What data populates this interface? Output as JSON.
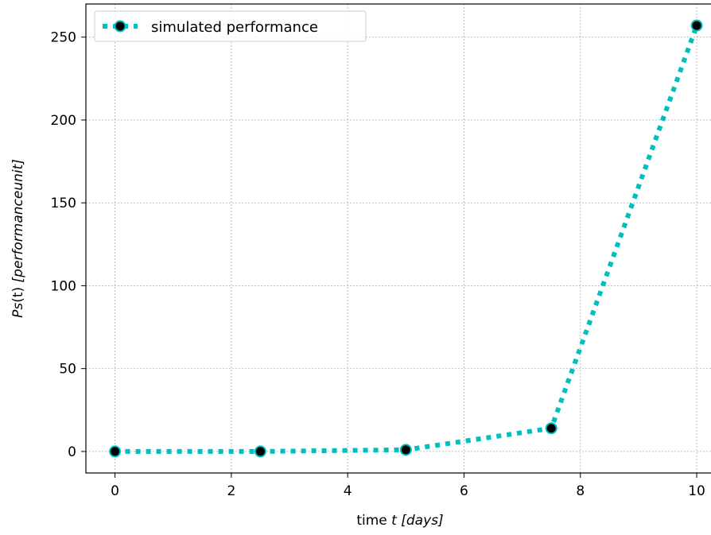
{
  "chart_data": {
    "type": "line",
    "xlabel": {
      "prefix": "time ",
      "var": "t",
      "unit": "[days]"
    },
    "ylabel": {
      "var": "Ps",
      "arg": "(t)",
      "unit": "[performanceunit]"
    },
    "x_ticks": [
      0,
      2,
      4,
      6,
      8,
      10
    ],
    "y_ticks": [
      0,
      50,
      100,
      150,
      200,
      250
    ],
    "xlim": [
      -0.5,
      10.3
    ],
    "ylim": [
      -13,
      270
    ],
    "grid": true,
    "legend_position": "top-left",
    "series": [
      {
        "name": "simulated performance",
        "line_style": "dotted",
        "line_color": "#00bfbf",
        "marker": "circle",
        "marker_color": "#000000",
        "x": [
          0,
          2.5,
          5,
          7.5,
          10
        ],
        "y": [
          0,
          0,
          1,
          14,
          257
        ]
      }
    ]
  }
}
